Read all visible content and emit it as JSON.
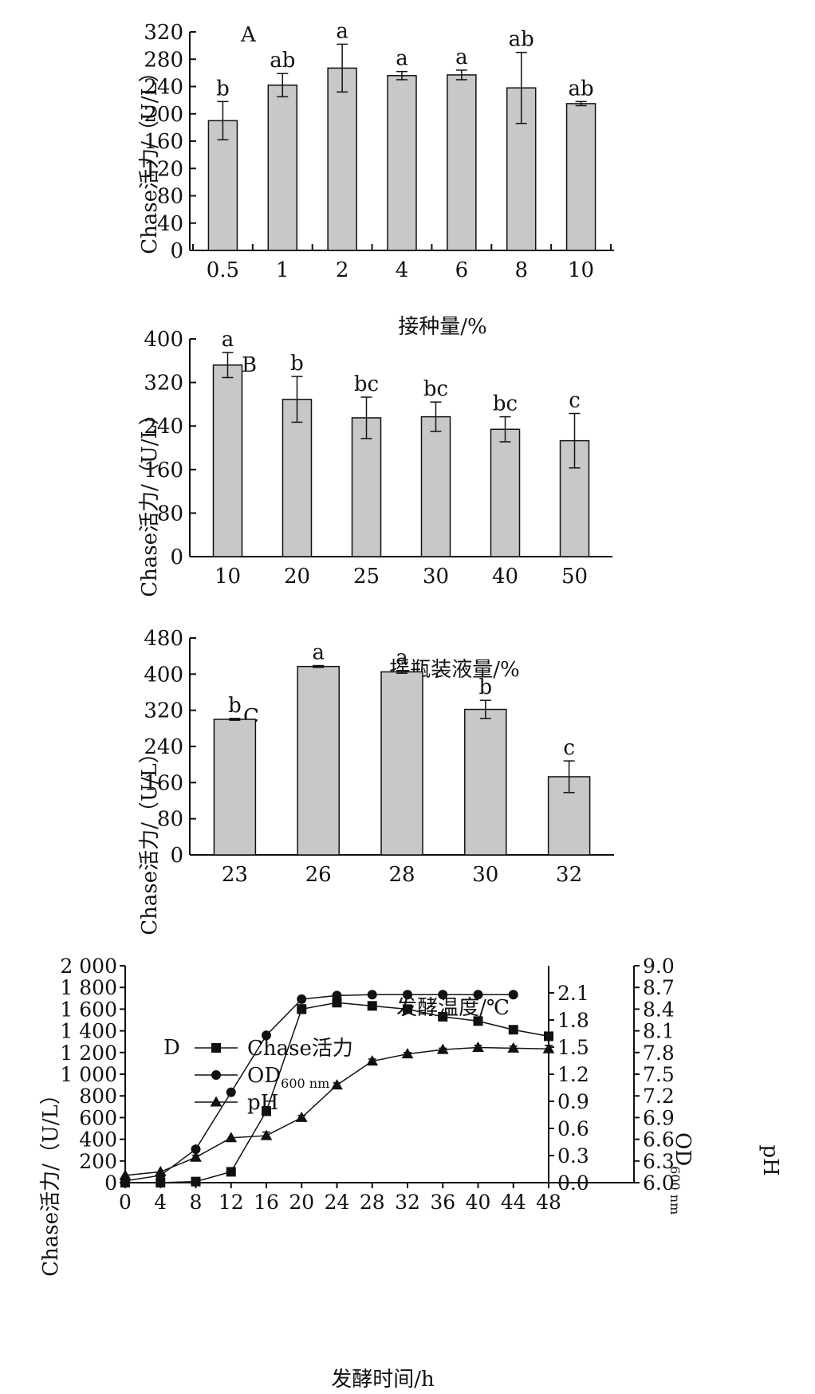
{
  "chart_data": [
    {
      "type": "bar",
      "panel": "A",
      "categories": [
        "0.5",
        "1",
        "2",
        "4",
        "6",
        "8",
        "10"
      ],
      "values": [
        190,
        242,
        267,
        256,
        257,
        238,
        215
      ],
      "errors": [
        28,
        17,
        35,
        6,
        7,
        52,
        3
      ],
      "letters": [
        "b",
        "ab",
        "a",
        "a",
        "a",
        "ab",
        "ab"
      ],
      "xlabel": "接种量/%",
      "ylabel": "Chase活力/（U/L）",
      "ylim": [
        0,
        320
      ],
      "yticks": [
        0,
        40,
        80,
        120,
        160,
        200,
        240,
        280,
        320
      ]
    },
    {
      "type": "bar",
      "panel": "B",
      "categories": [
        "10",
        "20",
        "25",
        "30",
        "40",
        "50"
      ],
      "values": [
        352,
        289,
        255,
        257,
        234,
        213
      ],
      "errors": [
        23,
        42,
        38,
        27,
        23,
        50
      ],
      "letters": [
        "a",
        "b",
        "bc",
        "bc",
        "bc",
        "c"
      ],
      "xlabel": "摇瓶装液量/%",
      "ylabel": "Chase活力/（U/L）",
      "ylim": [
        0,
        400
      ],
      "yticks": [
        0,
        80,
        160,
        240,
        320,
        400
      ]
    },
    {
      "type": "bar",
      "panel": "C",
      "categories": [
        "23",
        "26",
        "28",
        "30",
        "32"
      ],
      "values": [
        300,
        417,
        405,
        322,
        173
      ],
      "errors": [
        2,
        2,
        3,
        20,
        35
      ],
      "letters": [
        "b",
        "a",
        "a",
        "b",
        "c"
      ],
      "xlabel": "发酵温度/℃",
      "ylabel": "Chase活力/（U/L）",
      "ylim": [
        0,
        480
      ],
      "yticks": [
        0,
        80,
        160,
        240,
        320,
        400,
        480
      ]
    },
    {
      "type": "line",
      "panel": "D",
      "x": [
        0,
        4,
        8,
        12,
        16,
        20,
        24,
        28,
        32,
        36,
        40,
        44,
        48
      ],
      "xticks": [
        0,
        4,
        8,
        12,
        16,
        20,
        24,
        28,
        32,
        36,
        40,
        44,
        48
      ],
      "xlim": [
        0,
        48
      ],
      "xlabel": "发酵时间/h",
      "ylabel": "Chase活力/（U/L）",
      "ylim": [
        0,
        2000
      ],
      "yticks": [
        "0",
        "200",
        "400",
        "600",
        "800",
        "1 000",
        "1 200",
        "1 400",
        "1 600",
        "1 800",
        "2 000"
      ],
      "y2label": "OD",
      "y2label_sub": "600 nm",
      "y2lim": [
        0,
        2.4
      ],
      "y2ticks": [
        "0.0",
        "0.3",
        "0.6",
        "0.9",
        "1.2",
        "1.5",
        "1.8",
        "2.1"
      ],
      "y3label": "pH",
      "y3lim": [
        6.0,
        9.0
      ],
      "y3ticks": [
        "6.0",
        "6.3",
        "6.6",
        "6.9",
        "7.2",
        "7.5",
        "7.8",
        "8.1",
        "8.4",
        "8.7",
        "9.0"
      ],
      "series": [
        {
          "name": "Chase活力",
          "marker": "square",
          "axis": "y",
          "values": [
            0,
            0,
            10,
            100,
            660,
            1600,
            1660,
            1630,
            1600,
            1530,
            1490,
            1410,
            1350
          ],
          "errors": [
            0,
            0,
            0,
            0,
            40,
            40,
            20,
            20,
            30,
            20,
            20,
            20,
            20
          ]
        },
        {
          "name": "OD",
          "name_sub": "600 nm",
          "marker": "circle",
          "axis": "y2",
          "values": [
            0.02,
            0.08,
            0.37,
            1.0,
            1.63,
            2.03,
            2.07,
            2.08,
            2.08,
            2.08,
            2.08,
            2.08,
            null
          ]
        },
        {
          "name": "pH",
          "marker": "triangle",
          "axis": "y3",
          "values": [
            6.1,
            6.15,
            6.35,
            6.62,
            6.65,
            6.9,
            7.35,
            7.68,
            7.78,
            7.84,
            7.87,
            7.86,
            7.85
          ],
          "errors": [
            0,
            0,
            0.03,
            0,
            0.05,
            0.03,
            0.03,
            0.03,
            0.02,
            0.02,
            0.03,
            0.03,
            0.05
          ]
        }
      ]
    }
  ]
}
